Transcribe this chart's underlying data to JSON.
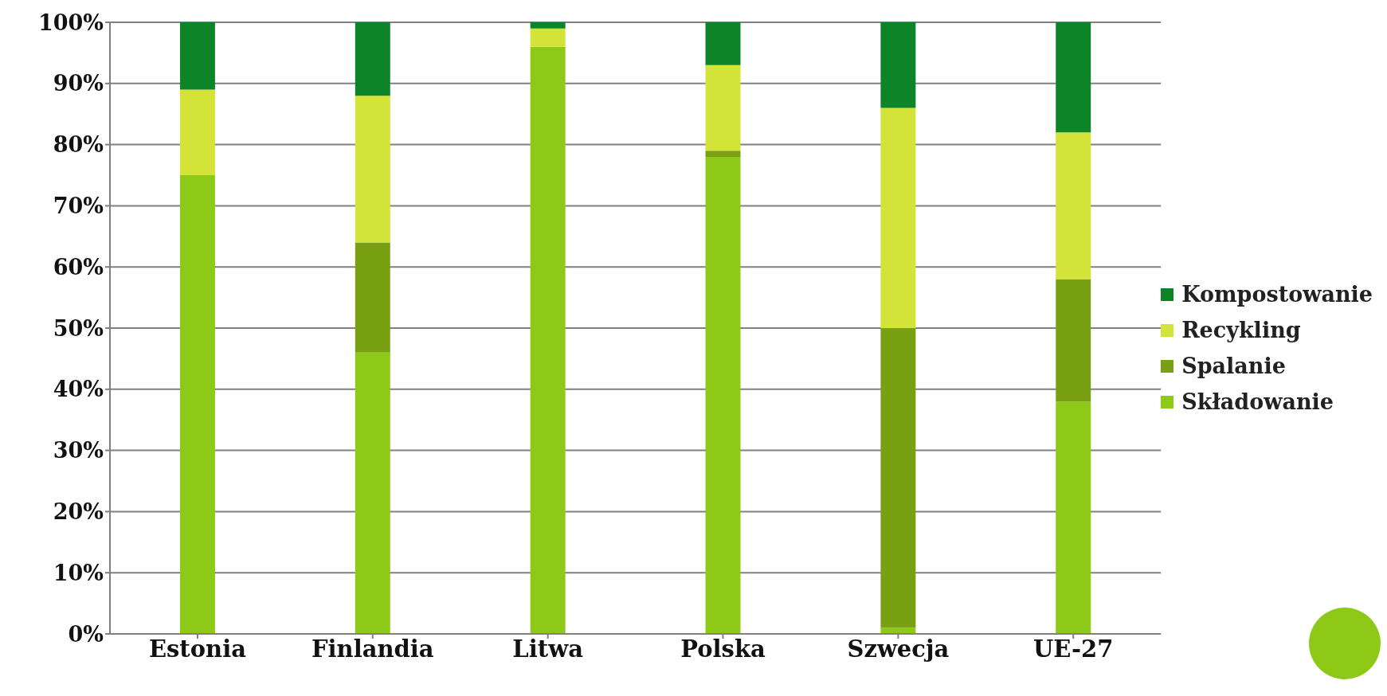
{
  "chart_data": {
    "type": "bar",
    "stacked": true,
    "categories": [
      "Estonia",
      "Finlandia",
      "Litwa",
      "Polska",
      "Szwecja",
      "UE-27"
    ],
    "series": [
      {
        "name": "Składowanie",
        "color": "#8fc918",
        "values": [
          75,
          46,
          96,
          78,
          1,
          38
        ]
      },
      {
        "name": "Spalanie",
        "color": "#78a012",
        "values": [
          0,
          18,
          0,
          1,
          49,
          20
        ]
      },
      {
        "name": "Recykling",
        "color": "#d4e337",
        "values": [
          14,
          24,
          3,
          14,
          36,
          24
        ]
      },
      {
        "name": "Kompostowanie",
        "color": "#0c8427",
        "values": [
          11,
          12,
          1,
          7,
          14,
          18
        ]
      }
    ],
    "ylim": [
      0,
      100
    ],
    "yticks": [
      {
        "value": 0,
        "label": "0%"
      },
      {
        "value": 10,
        "label": "10%"
      },
      {
        "value": 20,
        "label": "20%"
      },
      {
        "value": 30,
        "label": "30%"
      },
      {
        "value": 40,
        "label": "40%"
      },
      {
        "value": 50,
        "label": "50%"
      },
      {
        "value": 60,
        "label": "60%"
      },
      {
        "value": 70,
        "label": "70%"
      },
      {
        "value": 80,
        "label": "80%"
      },
      {
        "value": 90,
        "label": "90%"
      },
      {
        "value": 100,
        "label": "100%"
      }
    ],
    "grid": "y",
    "legend": "right"
  }
}
